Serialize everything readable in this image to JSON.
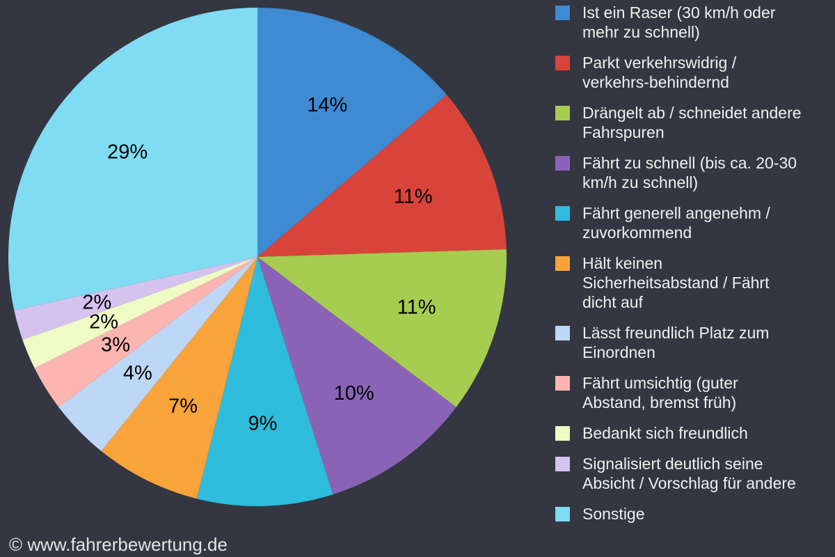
{
  "page": {
    "background_color": "#343741"
  },
  "watermark": {
    "text": "© www.fahrerbewertung.de"
  },
  "chart_data": {
    "type": "pie",
    "title": "",
    "direction": "clockwise",
    "start_angle_deg": 0,
    "legend_position": "right",
    "percent_label_color": "#000000",
    "legend_text_color": "#f0f0f0",
    "background_color": "#343741",
    "slices": [
      {
        "id": "raser",
        "value": 14,
        "percent_label": "14%",
        "color": "#3e8ad3",
        "label": "Ist ein Raser (30 km/h oder mehr zu schnell)",
        "legend_lines": [
          "Ist ein Raser (30 km/h oder",
          "mehr zu schnell)"
        ]
      },
      {
        "id": "parkt-verkehrswidrig",
        "value": 11,
        "percent_label": "11%",
        "color": "#d8443a",
        "label": "Parkt verkehrswidrig / verkehrs-behindernd",
        "legend_lines": [
          "Parkt verkehrswidrig /",
          "verkehrs-behindernd"
        ]
      },
      {
        "id": "draengelt-ab",
        "value": 11,
        "percent_label": "11%",
        "color": "#a6cc50",
        "label": "Drängelt ab / schneidet andere Fahrspuren",
        "legend_lines": [
          "Drängelt ab / schneidet andere",
          "Fahrspuren"
        ]
      },
      {
        "id": "faehrt-zu-schnell",
        "value": 10,
        "percent_label": "10%",
        "color": "#8a63b6",
        "label": "Fährt zu schnell (bis ca. 20-30 km/h zu schnell)",
        "legend_lines": [
          "Fährt zu schnell (bis ca. 20-30",
          "km/h zu schnell)"
        ]
      },
      {
        "id": "generell-angenehm",
        "value": 9,
        "percent_label": "9%",
        "color": "#2fbcdd",
        "label": "Fährt generell angenehm / zuvorkommend",
        "legend_lines": [
          "Fährt generell angenehm /",
          "zuvorkommend"
        ]
      },
      {
        "id": "kein-sicherheitsabstand",
        "value": 7,
        "percent_label": "7%",
        "color": "#f9a33b",
        "label": "Hält keinen Sicherheitsabstand / Fährt dicht auf",
        "legend_lines": [
          "Hält keinen",
          "Sicherheitsabstand / Fährt",
          "dicht auf"
        ]
      },
      {
        "id": "laesst-platz",
        "value": 4,
        "percent_label": "4%",
        "color": "#bed7f6",
        "label": "Lässt freundlich Platz zum Einordnen",
        "legend_lines": [
          "Lässt freundlich Platz zum",
          "Einordnen"
        ]
      },
      {
        "id": "faehrt-umsichtig",
        "value": 3,
        "percent_label": "3%",
        "color": "#fdb5b1",
        "label": "Fährt umsichtig (guter Abstand, bremst früh)",
        "legend_lines": [
          "Fährt umsichtig (guter",
          "Abstand, bremst früh)"
        ]
      },
      {
        "id": "bedankt-sich",
        "value": 2,
        "percent_label": "2%",
        "color": "#f0fac5",
        "label": "Bedankt sich freundlich",
        "legend_lines": [
          "Bedankt sich freundlich"
        ]
      },
      {
        "id": "signalisiert",
        "value": 2,
        "percent_label": "2%",
        "color": "#d5c2ef",
        "label": "Signalisiert deutlich seine Absicht / Vorschlag für andere",
        "legend_lines": [
          "Signalisiert deutlich seine",
          "Absicht / Vorschlag für andere"
        ]
      },
      {
        "id": "sonstige",
        "value": 29,
        "percent_label": "29%",
        "color": "#7fdcf2",
        "label": "Sonstige",
        "legend_lines": [
          "Sonstige"
        ]
      }
    ]
  }
}
